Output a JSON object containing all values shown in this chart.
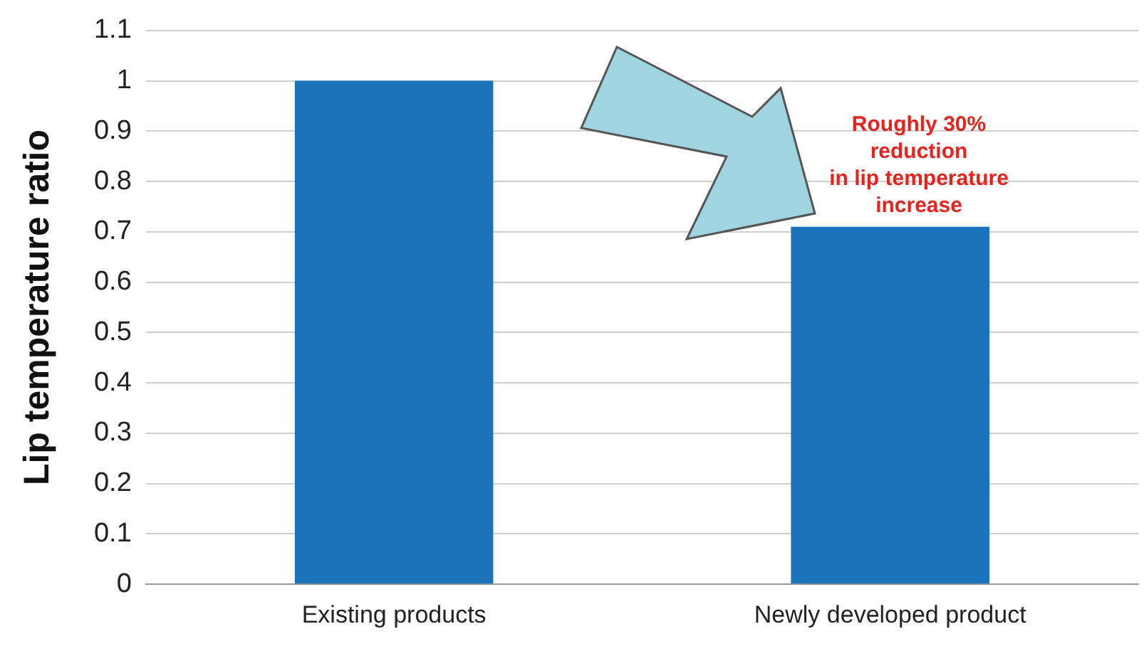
{
  "chart_data": {
    "type": "bar",
    "ylabel": "Lip temperature ratio",
    "categories": [
      "Existing products",
      "Newly developed product"
    ],
    "values": [
      1,
      0.71
    ],
    "color": "#1b74ba",
    "ylim": [
      0,
      1.1
    ],
    "yticks": [
      0,
      0.1,
      0.2,
      0.3,
      0.4,
      0.5,
      0.6,
      0.7,
      0.8,
      0.9,
      1,
      1.1
    ],
    "grid": "y",
    "legend": false,
    "annotations": [
      "Roughly 30%\nreduction\nin lip temperature\nincrease"
    ]
  }
}
